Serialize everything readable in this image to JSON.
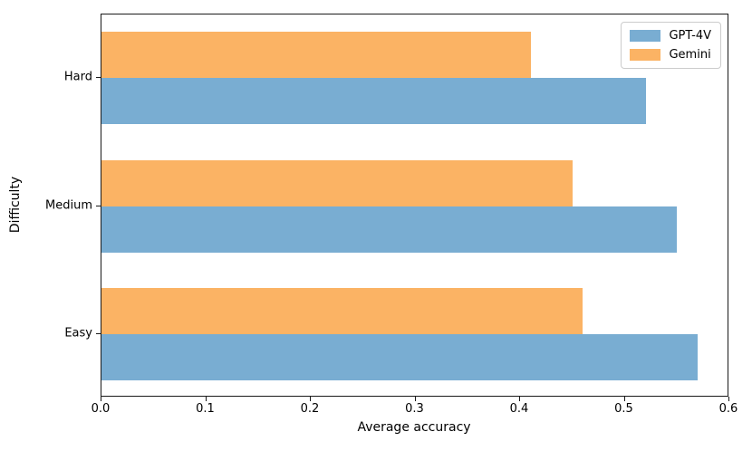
{
  "figure": {
    "background": "#ffffff",
    "spine_color": "#1a1a1a",
    "text_color": "#000000"
  },
  "chart_data": {
    "type": "bar",
    "orientation": "horizontal",
    "title": "",
    "xlabel": "Average accuracy",
    "ylabel": "Difficulty",
    "categories": [
      "Hard",
      "Medium",
      "Easy"
    ],
    "series": [
      {
        "name": "GPT-4V",
        "color": "#79add2",
        "values": [
          0.52,
          0.55,
          0.57
        ]
      },
      {
        "name": "Gemini",
        "color": "#fbb364",
        "values": [
          0.41,
          0.45,
          0.46
        ]
      }
    ],
    "xlim": [
      0.0,
      0.6
    ],
    "xticks": [
      0.0,
      0.1,
      0.2,
      0.3,
      0.4,
      0.5,
      0.6
    ],
    "xtick_labels": [
      "0.0",
      "0.1",
      "0.2",
      "0.3",
      "0.4",
      "0.5",
      "0.6"
    ],
    "grid": false,
    "legend_position": "upper right",
    "legend_border": true,
    "bar_group_order_top_to_bottom": [
      "Gemini",
      "GPT-4V"
    ]
  }
}
